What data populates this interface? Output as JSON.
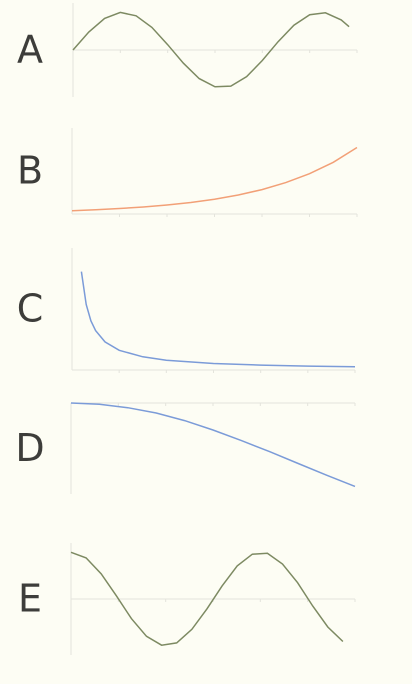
{
  "chart_data": [
    {
      "type": "line",
      "title": "A",
      "color": "#7d8a62",
      "xlim": [
        0,
        9
      ],
      "ylim": [
        -1.25,
        1.25
      ],
      "x": [
        0,
        0.5,
        1,
        1.5,
        2,
        2.5,
        3,
        3.5,
        4,
        4.5,
        5,
        5.5,
        6,
        6.5,
        7,
        7.5,
        8,
        8.5,
        8.75
      ],
      "values": [
        0,
        0.48,
        0.84,
        1.0,
        0.91,
        0.6,
        0.14,
        -0.35,
        -0.76,
        -0.98,
        -0.96,
        -0.71,
        -0.28,
        0.22,
        0.66,
        0.94,
        0.99,
        0.8,
        0.62
      ]
    },
    {
      "type": "line",
      "title": "B",
      "color": "#f2a077",
      "xlim": [
        0,
        6
      ],
      "ylim": [
        0,
        26
      ],
      "x": [
        0,
        0.5,
        1,
        1.5,
        2,
        2.5,
        3,
        3.5,
        4,
        4.5,
        5,
        5.5,
        6
      ],
      "values": [
        1,
        1.28,
        1.65,
        2.12,
        2.72,
        3.49,
        4.48,
        5.75,
        7.39,
        9.49,
        12.18,
        15.64,
        20.09
      ]
    },
    {
      "type": "line",
      "title": "C",
      "color": "#7b9bd8",
      "xlim": [
        0,
        6
      ],
      "ylim": [
        0,
        6.2
      ],
      "x": [
        0.2,
        0.3,
        0.4,
        0.5,
        0.7,
        1,
        1.5,
        2,
        3,
        4,
        5,
        6
      ],
      "values": [
        5,
        3.33,
        2.5,
        2,
        1.43,
        1,
        0.67,
        0.5,
        0.33,
        0.25,
        0.2,
        0.17
      ]
    },
    {
      "type": "line",
      "title": "D",
      "color": "#7b9bd8",
      "xlim": [
        0,
        2
      ],
      "ylim": [
        -1.55,
        0
      ],
      "x": [
        0,
        0.2,
        0.4,
        0.6,
        0.8,
        1,
        1.2,
        1.4,
        1.6,
        1.8,
        2
      ],
      "values": [
        0,
        -0.02,
        -0.08,
        -0.17,
        -0.3,
        -0.46,
        -0.64,
        -0.83,
        -1.03,
        -1.23,
        -1.42
      ]
    },
    {
      "type": "line",
      "title": "E",
      "color": "#7d8a62",
      "xlim": [
        0,
        9.4
      ],
      "ylim": [
        -1.2,
        1.2
      ],
      "x": [
        0,
        0.5,
        1,
        1.5,
        2,
        2.5,
        3,
        3.5,
        4,
        4.5,
        5,
        5.5,
        6,
        6.5,
        7,
        7.5,
        8,
        8.5,
        9
      ],
      "values": [
        1,
        0.88,
        0.54,
        0.07,
        -0.42,
        -0.8,
        -0.99,
        -0.94,
        -0.65,
        -0.21,
        0.28,
        0.71,
        0.96,
        0.98,
        0.75,
        0.35,
        -0.15,
        -0.6,
        -0.91
      ]
    }
  ]
}
